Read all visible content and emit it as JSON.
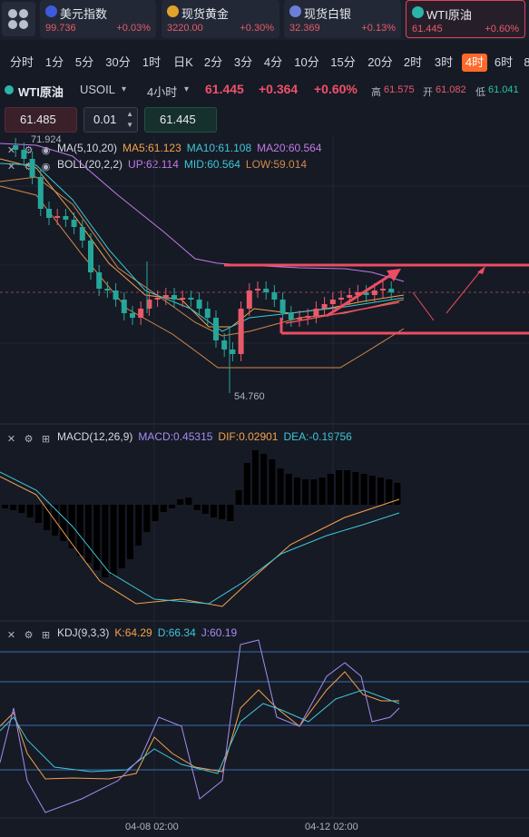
{
  "tickers": [
    {
      "name": "美元指数",
      "price": "99.736",
      "change": "+0.03%",
      "flag_color": "#3b5bdb",
      "active": false
    },
    {
      "name": "现货黄金",
      "price": "3220.00",
      "change": "+0.30%",
      "flag_color": "#e0a42b",
      "active": false
    },
    {
      "name": "现货白银",
      "price": "32.369",
      "change": "+0.13%",
      "flag_color": "#6b7fd7",
      "active": false
    },
    {
      "name": "WTI原油",
      "price": "61.445",
      "change": "+0.60%",
      "flag_color": "#2bb5a8",
      "active": true
    }
  ],
  "timeframes": [
    "分时",
    "1分",
    "5分",
    "30分",
    "1时",
    "日K",
    "2分",
    "3分",
    "4分",
    "10分",
    "15分",
    "20分",
    "2时",
    "3时",
    "4时",
    "6时",
    "8"
  ],
  "active_timeframe": "4时",
  "instrument": {
    "name": "WTI原油",
    "code": "USOIL",
    "interval": "4小时",
    "price": "61.445",
    "change": "+0.364",
    "change_pct": "+0.60%",
    "high_label": "高",
    "high": "61.575",
    "open_label": "开",
    "open": "61.082",
    "low_label": "低",
    "low": "61.041"
  },
  "order": {
    "sell_price": "61.485",
    "lot": "0.01",
    "buy_price": "61.445"
  },
  "price_labels": {
    "top": "71.924",
    "bottom": "54.760"
  },
  "ma_legend": {
    "name": "MA(5,10,20)",
    "ma5": "MA5:61.123",
    "ma10": "MA10:61.108",
    "ma20": "MA20:60.564"
  },
  "boll_legend": {
    "name": "BOLL(20,2,2)",
    "up": "UP:62.114",
    "mid": "MID:60.564",
    "low": "LOW:59.014"
  },
  "macd_legend": {
    "name": "MACD(12,26,9)",
    "macd": "MACD:0.45315",
    "dif": "DIF:0.02901",
    "dea": "DEA:-0.19756"
  },
  "kdj_legend": {
    "name": "KDJ(9,3,3)",
    "k": "K:64.29",
    "d": "D:66.34",
    "j": "J:60.19"
  },
  "date_labels": [
    "04-08 02:00",
    "04-12 02:00"
  ],
  "colors": {
    "up": "#e85a6a",
    "down": "#26a69a",
    "ma5": "#f5a34a",
    "ma10": "#3ec6d6",
    "ma20": "#c27ae6",
    "boll_up": "#c27ae6",
    "boll_mid": "#3ec6d6",
    "boll_low": "#d08a4a",
    "dif": "#f5a34a",
    "dea": "#3ec6d6",
    "k": "#f5a34a",
    "d": "#3ec6d6",
    "j": "#a58cf0"
  }
}
